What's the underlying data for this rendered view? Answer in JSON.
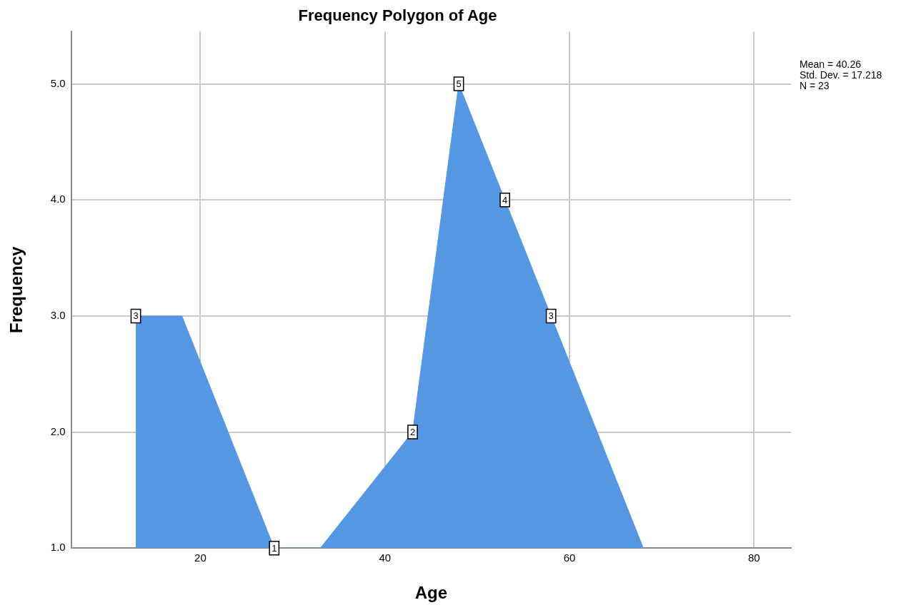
{
  "chart_data": {
    "type": "area",
    "title": "Frequency Polygon of Age",
    "xlabel": "Age",
    "ylabel": "Frequency",
    "x": [
      13,
      18,
      28,
      33,
      43,
      48,
      53,
      58,
      68
    ],
    "series": [
      {
        "color": "#5597e3",
        "values": [
          3,
          3,
          1,
          1,
          2,
          5,
          4,
          3,
          1
        ],
        "value_labels": [
          "3",
          null,
          "1",
          null,
          "2",
          "5",
          "4",
          "3",
          null
        ]
      }
    ],
    "xlim": [
      6,
      84
    ],
    "xticks": [
      20,
      40,
      60,
      80
    ],
    "ylim": [
      1,
      5.45
    ],
    "yticks": [
      {
        "value": 1,
        "label": "1.0"
      },
      {
        "value": 2,
        "label": "2.0"
      },
      {
        "value": 3,
        "label": "3.0"
      },
      {
        "value": 4,
        "label": "4.0"
      },
      {
        "value": 5,
        "label": "5.0"
      }
    ],
    "grid": true,
    "legend": false,
    "annotations": [
      "Mean = 40.26",
      "Std. Dev. = 17.218",
      "N = 23"
    ]
  }
}
